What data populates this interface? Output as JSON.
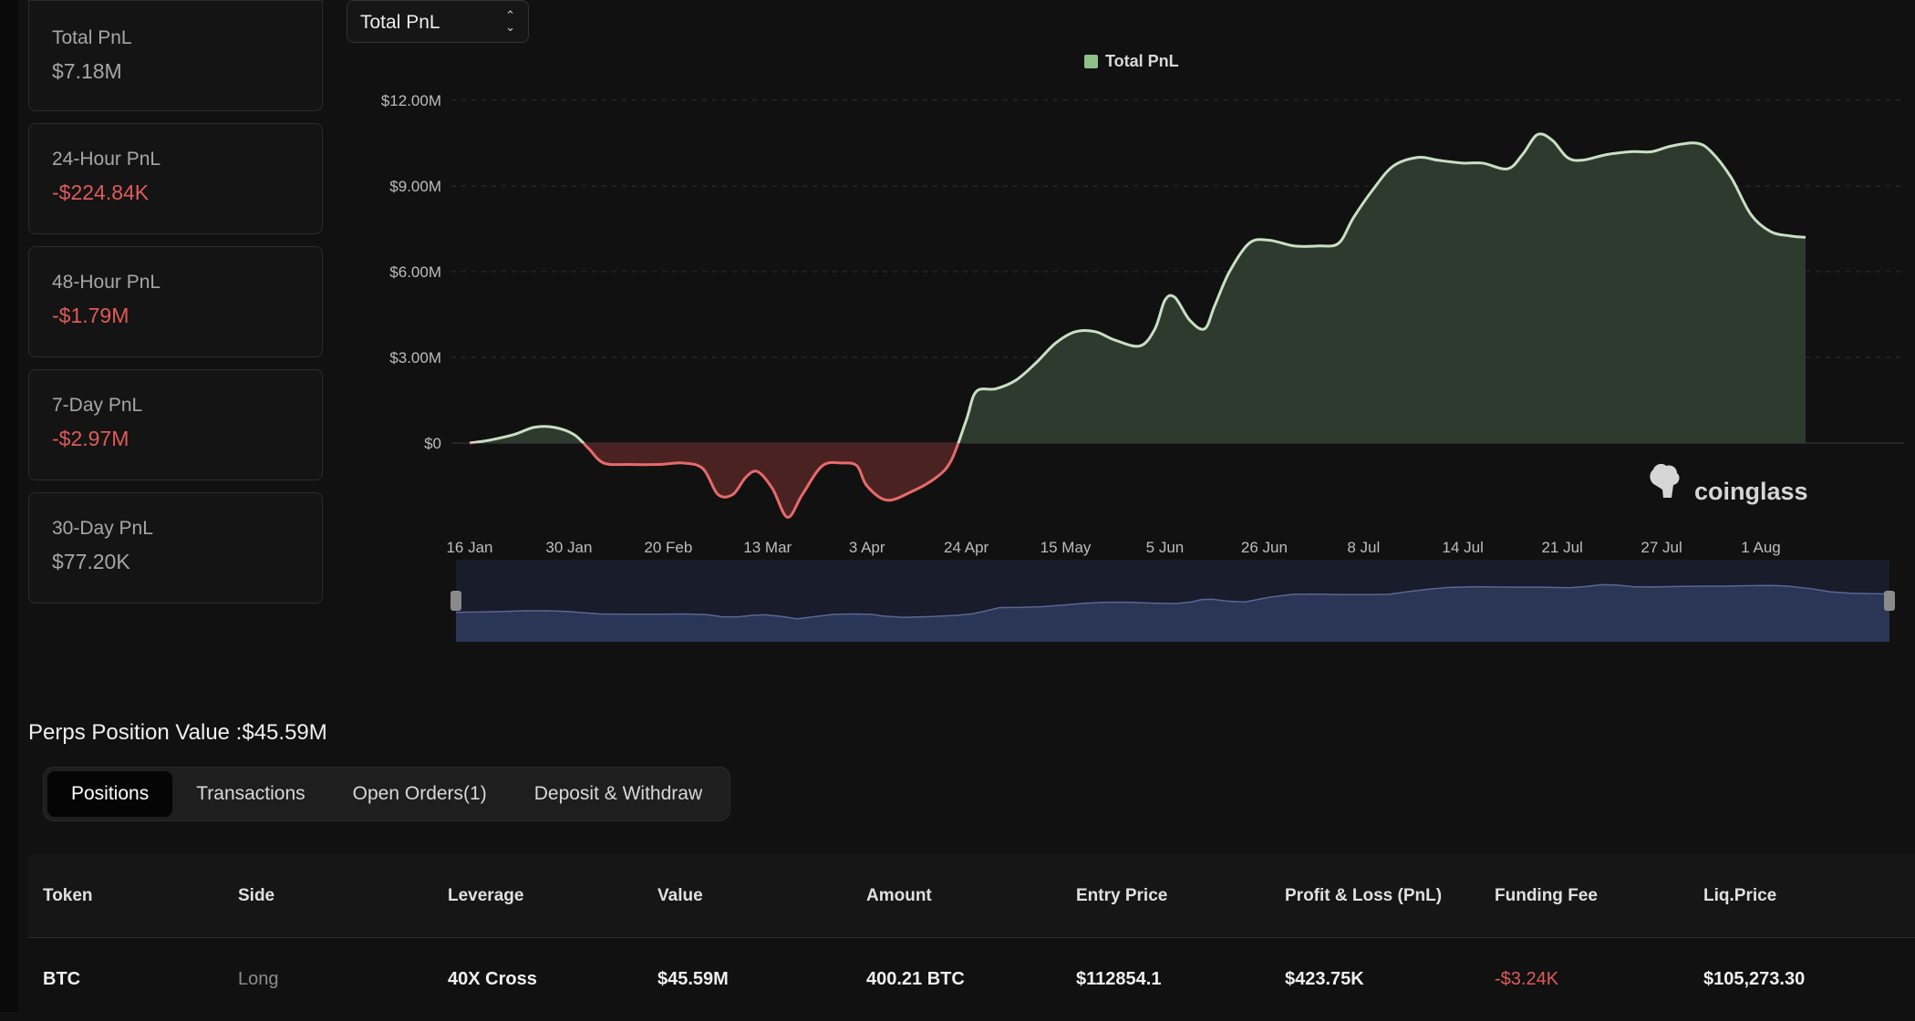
{
  "stats": [
    {
      "label": "Total PnL",
      "value": "$7.18M",
      "negative": false
    },
    {
      "label": "24-Hour PnL",
      "value": "-$224.84K",
      "negative": true
    },
    {
      "label": "48-Hour PnL",
      "value": "-$1.79M",
      "negative": true
    },
    {
      "label": "7-Day PnL",
      "value": "-$2.97M",
      "negative": true
    },
    {
      "label": "30-Day PnL",
      "value": "$77.20K",
      "negative": false
    }
  ],
  "metric_select": {
    "value": "Total PnL"
  },
  "watermark": "coinglass",
  "colors": {
    "positive_fill": "#2e3a2e",
    "positive_line": "#c9dfc4",
    "negative_fill": "#4a2222",
    "negative_line": "#e86a6a",
    "legend_swatch": "#8fbf8a",
    "navigator_fill": "#2b3556"
  },
  "chart_data": {
    "type": "area",
    "legend": [
      "Total PnL"
    ],
    "y_ticks": [
      "$12.00M",
      "$9.00M",
      "$6.00M",
      "$3.00M",
      "$0"
    ],
    "ylim": [
      -3.0,
      12.0
    ],
    "y_unit": "$M",
    "x_ticks": [
      "16 Jan",
      "30 Jan",
      "20 Feb",
      "13 Mar",
      "3 Apr",
      "24 Apr",
      "15 May",
      "5 Jun",
      "26 Jun",
      "8 Jul",
      "14 Jul",
      "21 Jul",
      "27 Jul",
      "1 Aug"
    ],
    "series": [
      {
        "name": "Total PnL",
        "points": [
          [
            0,
            0.0
          ],
          [
            0.2,
            0.1
          ],
          [
            0.45,
            0.3
          ],
          [
            0.65,
            0.55
          ],
          [
            0.85,
            0.55
          ],
          [
            1.05,
            0.3
          ],
          [
            1.2,
            -0.2
          ],
          [
            1.35,
            -0.7
          ],
          [
            1.6,
            -0.75
          ],
          [
            1.9,
            -0.75
          ],
          [
            2.15,
            -0.7
          ],
          [
            2.35,
            -0.9
          ],
          [
            2.5,
            -1.8
          ],
          [
            2.65,
            -1.8
          ],
          [
            2.78,
            -1.2
          ],
          [
            2.9,
            -1.0
          ],
          [
            3.05,
            -1.6
          ],
          [
            3.2,
            -2.6
          ],
          [
            3.35,
            -1.8
          ],
          [
            3.55,
            -0.8
          ],
          [
            3.75,
            -0.7
          ],
          [
            3.9,
            -0.8
          ],
          [
            4.0,
            -1.5
          ],
          [
            4.2,
            -2.0
          ],
          [
            4.45,
            -1.7
          ],
          [
            4.7,
            -1.2
          ],
          [
            4.85,
            -0.6
          ],
          [
            5.0,
            0.8
          ],
          [
            5.1,
            1.8
          ],
          [
            5.3,
            1.9
          ],
          [
            5.5,
            2.2
          ],
          [
            5.7,
            2.8
          ],
          [
            5.9,
            3.5
          ],
          [
            6.1,
            3.9
          ],
          [
            6.3,
            3.9
          ],
          [
            6.5,
            3.6
          ],
          [
            6.75,
            3.4
          ],
          [
            6.9,
            4.0
          ],
          [
            7.0,
            5.0
          ],
          [
            7.1,
            5.1
          ],
          [
            7.25,
            4.3
          ],
          [
            7.4,
            4.0
          ],
          [
            7.5,
            4.8
          ],
          [
            7.65,
            6.0
          ],
          [
            7.85,
            7.0
          ],
          [
            8.05,
            7.1
          ],
          [
            8.3,
            6.9
          ],
          [
            8.55,
            6.9
          ],
          [
            8.75,
            7.0
          ],
          [
            8.9,
            7.9
          ],
          [
            9.1,
            8.9
          ],
          [
            9.3,
            9.7
          ],
          [
            9.55,
            10.0
          ],
          [
            9.75,
            9.9
          ],
          [
            10.0,
            9.8
          ],
          [
            10.2,
            9.8
          ],
          [
            10.45,
            9.6
          ],
          [
            10.6,
            10.1
          ],
          [
            10.75,
            10.8
          ],
          [
            10.9,
            10.6
          ],
          [
            11.05,
            10.0
          ],
          [
            11.2,
            9.9
          ],
          [
            11.45,
            10.1
          ],
          [
            11.7,
            10.2
          ],
          [
            11.9,
            10.2
          ],
          [
            12.1,
            10.4
          ],
          [
            12.35,
            10.5
          ],
          [
            12.5,
            10.2
          ],
          [
            12.7,
            9.3
          ],
          [
            12.9,
            8.0
          ],
          [
            13.1,
            7.4
          ],
          [
            13.3,
            7.25
          ],
          [
            13.45,
            7.2
          ]
        ]
      }
    ],
    "navigator": true
  },
  "perps": {
    "title": "Perps Position Value :$45.59M"
  },
  "tabs": [
    "Positions",
    "Transactions",
    "Open Orders(1)",
    "Deposit & Withdraw"
  ],
  "table": {
    "columns": [
      "Token",
      "Side",
      "Leverage",
      "Value",
      "Amount",
      "Entry Price",
      "Profit & Loss (PnL)",
      "Funding Fee",
      "Liq.Price"
    ],
    "rows": [
      [
        "BTC",
        "Long",
        "40X Cross",
        "$45.59M",
        "400.21 BTC",
        "$112854.1",
        "$423.75K",
        "-$3.24K",
        "$105,273.30"
      ]
    ]
  }
}
